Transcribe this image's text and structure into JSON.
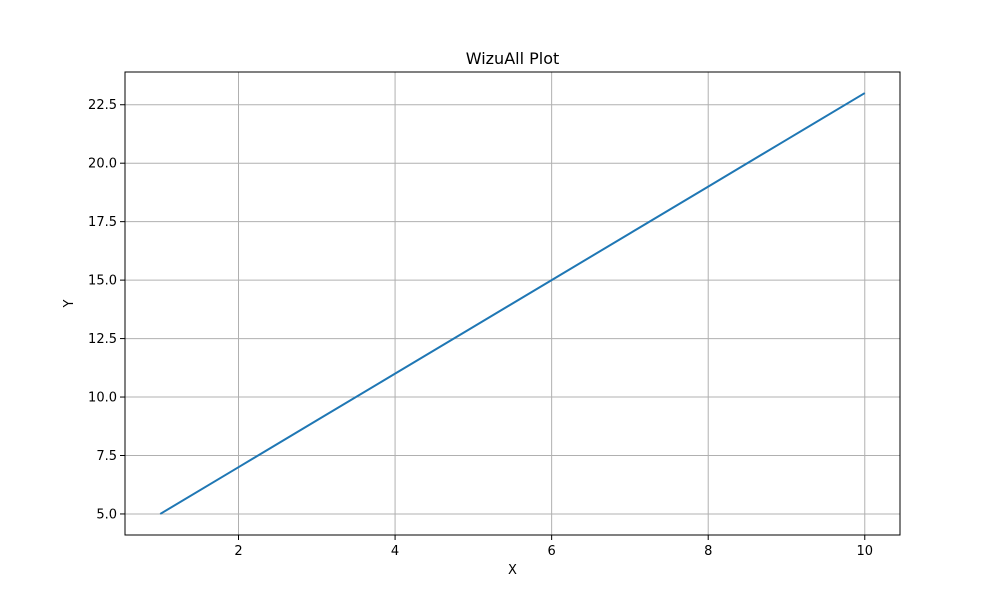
{
  "chart_data": {
    "type": "line",
    "title": "WizuAll Plot",
    "xlabel": "X",
    "ylabel": "Y",
    "x": [
      1,
      2,
      3,
      4,
      5,
      6,
      7,
      8,
      9,
      10
    ],
    "series": [
      {
        "values": [
          5,
          7,
          9,
          11,
          13,
          15,
          17,
          19,
          21,
          23
        ],
        "color": "#1f77b4"
      }
    ],
    "xlim": [
      0.55,
      10.45
    ],
    "ylim": [
      4.1,
      23.9
    ],
    "xticks": [
      2,
      4,
      6,
      8,
      10
    ],
    "xtick_labels": [
      "2",
      "4",
      "6",
      "8",
      "10"
    ],
    "yticks": [
      5.0,
      7.5,
      10.0,
      12.5,
      15.0,
      17.5,
      20.0,
      22.5
    ],
    "ytick_labels": [
      "5.0",
      "7.5",
      "10.0",
      "12.5",
      "15.0",
      "17.5",
      "20.0",
      "22.5"
    ],
    "grid": true,
    "grid_color": "#b0b0b0",
    "legend": false
  }
}
